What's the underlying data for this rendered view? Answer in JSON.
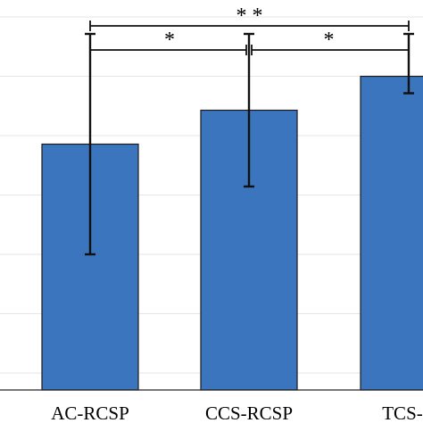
{
  "chart_data": {
    "type": "bar",
    "categories": [
      "AC-RCSP",
      "CCS-RCSP",
      "TCS-R"
    ],
    "values": [
      0.73,
      0.77,
      0.81
    ],
    "error_low": [
      0.6,
      0.68,
      0.79
    ],
    "error_high": [
      0.86,
      0.86,
      0.86
    ],
    "ylim": [
      0.44,
      0.9
    ],
    "grid": true,
    "bar_color": "#3a75bd",
    "significance": [
      {
        "from": 0,
        "to": 1,
        "label": "*"
      },
      {
        "from": 1,
        "to": 2,
        "label": "*"
      },
      {
        "from": 0,
        "to": 2,
        "label": "**"
      }
    ]
  }
}
